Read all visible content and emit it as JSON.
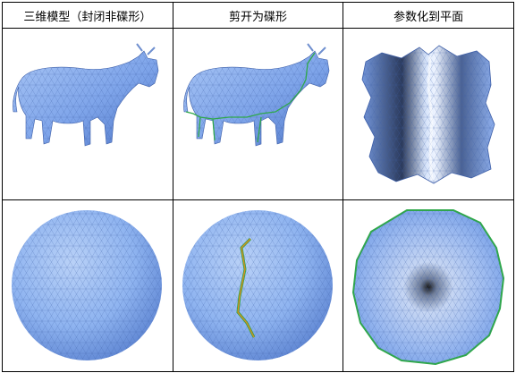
{
  "columns": [
    {
      "header": "三维模型（封闭非碟形）"
    },
    {
      "header": "剪开为碟形"
    },
    {
      "header": "参数化到平面"
    }
  ],
  "rows": [
    {
      "row": "cow",
      "panels": [
        "closed-cow-model",
        "cow-with-cut-seam",
        "cow-flattened-to-plane"
      ]
    },
    {
      "row": "sphere",
      "panels": [
        "closed-sphere-mesh",
        "sphere-with-cut-seam",
        "sphere-flattened-to-disc"
      ]
    }
  ],
  "colors": {
    "mesh_blue": "#8fb4f0",
    "mesh_dark": "#3e5fa8",
    "seam_green": "#2fa84a",
    "seam_orange": "#e08a1e",
    "border": "#000000"
  }
}
